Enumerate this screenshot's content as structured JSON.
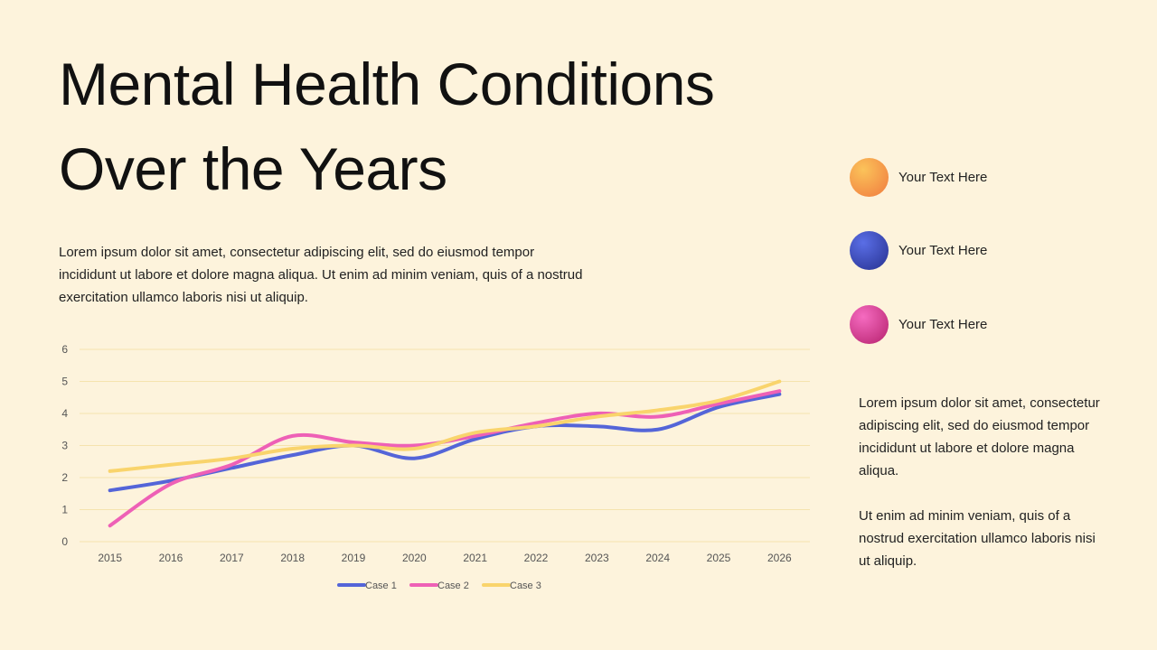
{
  "title": "Mental Health Conditions Over the Years",
  "description": "Lorem ipsum dolor sit amet, consectetur adipiscing elit, sed do eiusmod tempor incididunt ut labore et dolore magna aliqua. Ut enim ad minim veniam, quis of a nostrud exercitation ullamco laboris nisi ut aliquip.",
  "sidebar": {
    "items": [
      "Your Text Here",
      "Your Text Here",
      "Your Text Here"
    ],
    "paragraphs": [
      "Lorem ipsum dolor sit amet, consectetur adipiscing elit, sed do eiusmod tempor incididunt ut labore et dolore magna aliqua.",
      "Ut enim ad minim veniam, quis of a nostrud exercitation ullamco laboris nisi ut aliquip."
    ]
  },
  "chart_data": {
    "type": "line",
    "smooth": true,
    "categories": [
      "2015",
      "2016",
      "2017",
      "2018",
      "2019",
      "2020",
      "2021",
      "2022",
      "2023",
      "2024",
      "2025",
      "2026"
    ],
    "series": [
      {
        "name": "Case 1",
        "color": "#5465d8",
        "values": [
          1.6,
          1.9,
          2.3,
          2.7,
          3.0,
          2.6,
          3.2,
          3.6,
          3.6,
          3.5,
          4.2,
          4.6
        ]
      },
      {
        "name": "Case 2",
        "color": "#ee60b6",
        "values": [
          0.5,
          1.8,
          2.4,
          3.3,
          3.1,
          3.0,
          3.3,
          3.7,
          4.0,
          3.9,
          4.3,
          4.7
        ]
      },
      {
        "name": "Case 3",
        "color": "#f9d46c",
        "values": [
          2.2,
          2.4,
          2.6,
          2.9,
          3.0,
          2.9,
          3.4,
          3.6,
          3.9,
          4.1,
          4.4,
          5.0
        ]
      }
    ],
    "ylim": [
      0,
      6
    ],
    "yticks": [
      0,
      1,
      2,
      3,
      4,
      5,
      6
    ],
    "grid": true,
    "legend": "bottom"
  }
}
